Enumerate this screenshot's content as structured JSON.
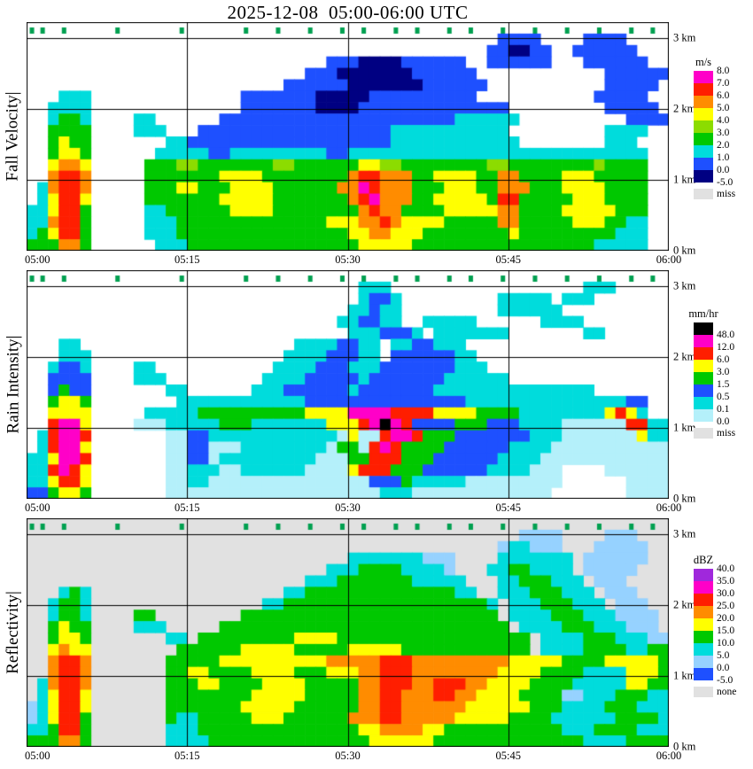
{
  "title": "2025-12-08  05:00-06:00 UTC",
  "x_ticks": [
    "05:00",
    "05:15",
    "05:30",
    "05:45",
    "06:00"
  ],
  "y_ticks_km": [
    "0 km",
    "1 km",
    "2 km",
    "3 km"
  ],
  "palette": {
    "T": "#00a050",
    "B": "#1e50ff",
    "N": "#000082",
    "C": "#00dcdc",
    "c": "#b4f0fa",
    "b": "#96d2ff",
    "G": "#00c800",
    "g": "#8cdc00",
    "Y": "#ffff00",
    "O": "#ff8c00",
    "R": "#ff1e00",
    "M": "#ff00c8",
    "K": "#000000",
    "P": "#a028dc",
    "E": "#e1e1e1"
  },
  "chart_data": [
    {
      "type": "heatmap",
      "id": "fall-velocity",
      "ylabel": "Fall Velocity|",
      "x_range_minutes": [
        0,
        60
      ],
      "y_range_km": [
        0,
        3.2
      ],
      "bg": "#ffffff",
      "pad": ".",
      "colorbar": {
        "unit": "m/s",
        "segments": [
          "#ff00c8",
          "#ff1e00",
          "#ff8c00",
          "#ffff00",
          "#8cdc00",
          "#00c800",
          "#00dcdc",
          "#1e50ff",
          "#000082"
        ],
        "labels": [
          "8.0",
          "7.0",
          "6.0",
          "5.0",
          "4.0",
          "3.0",
          "2.0",
          "1.0",
          "0.0",
          "-5.0"
        ],
        "label_offset": 0,
        "extra_label": "miss",
        "extra_color": "#e1e1e1"
      },
      "grid": [
        "TT.T....T.....T.....T..T..T..T.T..T.T..T.T..T..T..T..T..T.T.",
        "............................................BBBB....BBBB....",
        "...........................................BBNNBB..BBBBBB...",
        "............................BBBNNNNBBBBBB..BBBBBB...BBBBBB..",
        "..........................BBBNNNNNNNBBBBBB............BBBBBB.",
        "........................BBBBBBNNNNNNNBBBBBB...........BBBBB.",
        "...CCC..............BBBBBBBNNNNNBBBBBBBBBB...........BBBBB",
        "..CCCC..............BBBBBBBNNNNBBBBBBBBBBBBBB.........BBBBB",
        "..CGGC....CC......BBBBBBBBBBBBBBBBBBBBBBCCCCCC..........BBBB",
        "..GGGG....CCC...BBBBBBBBBBBBBBBBBBCCCCCCCCCCC.........CCCC",
        "..GYGG.......CCBBBBBBBBBBBBBBBBBBBCCCCCCCCCCCC........CCC",
        "..GYYG......CCCCCBBCCCCCCCCCBBCCCCCCCCCCCCCCCCCCCCCCCCCCCC",
        "..YOOY.....GGGggGGGGGGGggGGGGGGYYggGGGGGGGGggGGGGGGGGgGGGG",
        "..ORRO.....GGGGGGGYYYYGGGGGGGGORROOOGGYYYYGGOOGGGGYYYGGGGG",
        ".CORRO.....GGGYYGGGYYYYGGGGGGOOMROOOGGGYYYGGOOOGGGYYYYGGGG",
        ".CYRRY.....GGGGGGGYYYYYGGGGGGGORMOOOGGYYYYYGRRGGGGGYYYGGGG",
        "CCYRRG.....CCGGGGGGYYYYGGGGGGGGOROOGGGGYYYYYOOGGGGYYYYYGGG",
        "CCORRG.....CCCGGGGGGGGGGGGGGYYYOOROYYYYGGGGGOOGGGGGYYYGGCC",
        "CGYRRG.....CCCGGGGGGGGGGGGGGGGYYOOYYYGGGGGGGGYGGGGGGGGGCCC",
        "GGGOOG......CCCGGGGGGGGGGGGGGGGYYYYYGGGGGGGGGGGGGGGGGCCCCC"
      ]
    },
    {
      "type": "heatmap",
      "id": "rain-intensity",
      "ylabel": "Rain Intensity|",
      "x_range_minutes": [
        0,
        60
      ],
      "y_range_km": [
        0,
        3.2
      ],
      "bg": "#ffffff",
      "pad": ".",
      "colorbar": {
        "unit": "mm/hr",
        "segments": [
          "#000000",
          "#ff00c8",
          "#ff1e00",
          "#ffff00",
          "#00c800",
          "#1e50ff",
          "#00dcdc",
          "#b4f0fa"
        ],
        "labels": [
          "48.0",
          "12.0",
          "6.0",
          "3.0",
          "1.5",
          "0.5",
          "0.1",
          "0.0"
        ],
        "label_offset": 1,
        "extra_label": "miss",
        "extra_color": "#e1e1e1"
      },
      "grid": [
        "TT.T....T.....T.....T..T..T..T.T..T.T..T.T..T..T..T..T..T.T.",
        "...............................CCC..................CCC..",
        "...............................CBBC.........CCCCC.CCC.",
        "..............................CCBCC.........CCCCCC....",
        ".............................CCBBCC..CCCCC......CCCC.....",
        "..............................CCCBBBC.CCCCCCC.......CC......",
        "...CC....................CCCCBBCC.CCBBCCC...............",
        "...CCC..................CCCCBBBCC.BBBBBBCC..............",
        "..CBBC....CC...........CCCCBBBCCCBBBBBBBCCC.............",
        "..BBBB....CCC.........CCCCBBBBBCBBBBBBBCCCCCC...........",
        "..BGBB.......CC......CCCBBBBBBCBBBBBBBCCCCCCCCCCCCCCC...",
        "..GYYG........CCCCCCCCCCCCBBBBBBBBBBBBBBBCCCCCCCCCCCCCCCBB.",
        "..YYYY.....CCCCCGGGGGGGGGGYYYYMMMMRRRRYYYYGGGGCCCCCCCCYRYC",
        "..RMMY....cccCCCCCGGGCCCCCCCYYYRMKMRBBBBGGGBBBCCCCccccccRRCC",
        ".CRMMR.......ccBBCCCCCCCCCCCCcYccRMMRGGGBBBBBBBCCCcccccccYCCC",
        ".CRMMY.......ccBBcccCCCCCCCCcGGcRMRGGGGBBBBBBCCCCccccccccccc",
        "CCYMMR.......ccBBcCCCCCCCCCcccGGRRRGGGBBBBBBCCCCcccccccccccc",
        "CCRMRY.......ccCCCccCCCCCCccccYRRRGGGBBBBBBCCCCccc....cccccc",
        "CCYRRY.......ccCCcccccccccccccccBBBGCCCCCccccccccc......cccc",
        "BBGYYG.......ccccccccccccccccccccCCCccccccccccccc.......cccc"
      ]
    },
    {
      "type": "heatmap",
      "id": "reflectivity",
      "ylabel": "Reflectivity|",
      "x_range_minutes": [
        0,
        60
      ],
      "y_range_km": [
        0,
        3.2
      ],
      "bg": "#e1e1e1",
      "pad": "E",
      "colorbar": {
        "unit": "dBZ",
        "segments": [
          "#a028dc",
          "#ff00c8",
          "#ff1e00",
          "#ff8c00",
          "#ffff00",
          "#00c800",
          "#00dcdc",
          "#96d2ff",
          "#1e50ff"
        ],
        "labels": [
          "40.0",
          "35.0",
          "30.0",
          "25.0",
          "20.0",
          "15.0",
          "10.0",
          "5.0",
          "0.0",
          "-5.0"
        ],
        "label_offset": 0,
        "extra_label": "none",
        "extra_color": "#e1e1e1"
      },
      "grid": [
        "TTETEEEETEEEEETEEEEETEETEETEETETEETETEETETEETEETEETEETEETETE",
        "EEEEEEEEEEEEEEEEEEEEEEEEEEEEEEEEEEEEEEEEEEEEEEbbbbEEEEbbbEEE",
        "EEEEEEEEEEEEEEEEEEEEEEEEEEEEEEEEEEEEEEEEEEEEbCCbbbEEEbbbbbEE",
        "EEEEEEEEEEEEEEEEEEEEEEEEEEEEEECCCCCCCbbbEEEECCCCCCCEbbbbbbEE",
        "EEEEEEEEEEEEEEEEEEEEEEEEEEEECCCGGGGCCCCbEEECCGGCCCCEbbbbbEEE",
        "EEEEEEEEEEEEEEEEEEEEEEEEEECCCGGGGGGGCCCCCEEECCGGGCCCEbbbEEEE",
        "EEECGCEEEEEEEEEEEEEEEEEECCGGGGGGGGGGGGGGCCEECCCGGGCCCEbbbEEE",
        "EECGGCEEEEEEEEEEEEEEEECCGGGGGGGGGGGGGGGGGGGCECCCGGGCCCEbbbEE",
        "EECGGCEEEEGGEEEEEEEEGGGGGGGGGGGGGGGGGGGGGGGGECCCCGGGCCCbbbbE",
        "EEGYGGEEEECCCEEEEEGGGGGGGGGGGGGGGGGGGGGGGGGGGECCCCGGGCCCbbbE",
        "EEGYYGEEEEEEECCEGGGGGGGGGYYYYGGGGGGGGGGGGGGGGGGECCCCGGGCCCbbb",
        "EEYOYYEEEEEEEEGGGGGGYYYYYGGGGGYYYYYGGGGGGGGGGGGECCCCGGGGCCGG",
        "EEORROEEEEEEEGGGGGYYYYYYYYYYOOOOORRROOOOOOOOOYYYYYGGGGYYYYYG",
        "EEORROEEEEEEEGGYYGGGGYYYYGGGYYYOORRROOOOOOOOYYYYGGGGCCCCYYYG",
        "ECORROEEEEEEEGGGYYGGGGYYYYGGGGGOORRROORRROOYYYYGGGGCCCCCYYGG",
        "ECYRRYEEEEEEEGGGGGGGGYYYYYGGGGGOORROOORROOYYYYGGGGbbCCCGGGCC",
        "bCYRRYEEEEEEEGGGGGGGYYYYYGGGGGGOORROOOOOOYYYYYYGGGCCCCGGGCCC",
        "bCYRRGEEEEEEEGCCGGGGGYYYGGGGGGOOORROOOOOYYYYYGGGGCCCCCCGGGGC",
        "CCGRRGEEEEEEECCCGGGGGGGGGGGGGGGYYOOOOYYGGGGGGGGGGGCCCGGGGCCC",
        "GGGOOGEEEEEEECCCCGGGGGGGGGGGGGGGYYYYYYGGGGGGGGGGGGGGCCCCGGGG"
      ]
    }
  ]
}
